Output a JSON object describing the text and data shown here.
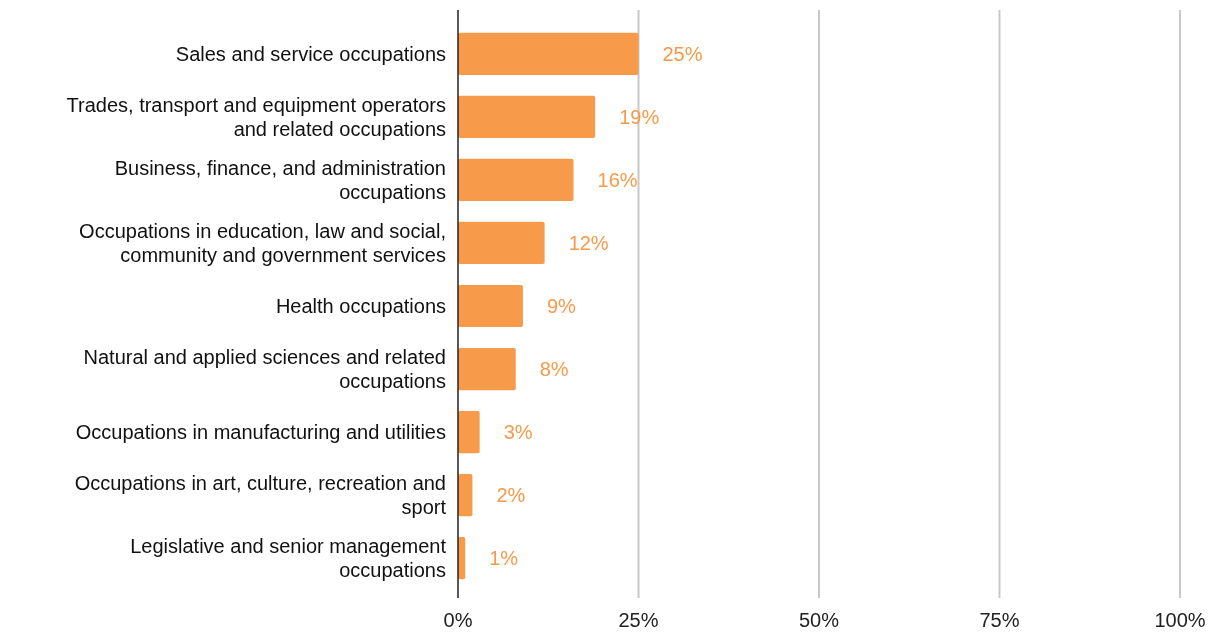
{
  "chart_data": {
    "type": "bar",
    "orientation": "horizontal",
    "categories": [
      "Sales and service occupations",
      "Trades, transport and equipment operators and related occupations",
      "Business, finance, and administration occupations",
      "Occupations in education, law and social, community and government services",
      "Health occupations",
      "Natural and applied sciences and related occupations",
      "Occupations in manufacturing and utilities",
      "Occupations in art, culture, recreation and sport",
      "Legislative and senior management occupations"
    ],
    "values": [
      25,
      19,
      16,
      12,
      9,
      8,
      3,
      2,
      1
    ],
    "color": "#f79a4a",
    "xlim": [
      0,
      100
    ],
    "xticks": [
      {
        "value": 0,
        "label": "0%"
      },
      {
        "value": 25,
        "label": "25%"
      },
      {
        "value": 50,
        "label": "50%"
      },
      {
        "value": 75,
        "label": "75%"
      },
      {
        "value": 100,
        "label": "100%"
      }
    ],
    "grid": "x",
    "value_labels": [
      "25%",
      "19%",
      "16%",
      "12%",
      "9%",
      "8%",
      "3%",
      "2%",
      "1%"
    ]
  }
}
